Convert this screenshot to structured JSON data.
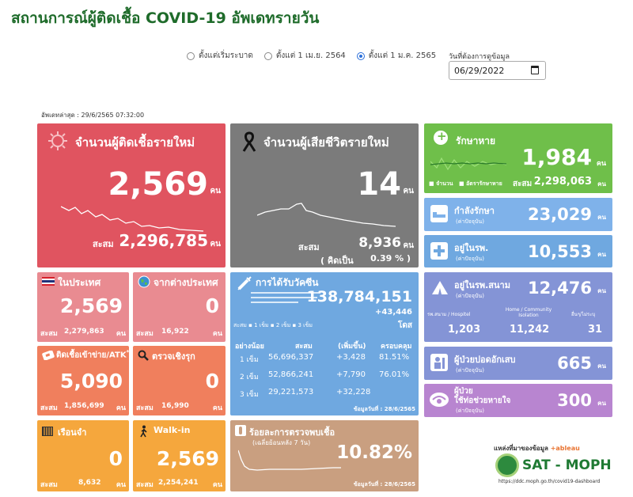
{
  "title": "สถานการณ์ผู้ติดเชื้อ COVID-19 อัพเดทรายวัน",
  "range_options": [
    {
      "label": "ตั้งแต่เริ่มระบาด",
      "selected": false
    },
    {
      "label": "ตั้งแต่ 1 เม.ย. 2564",
      "selected": false
    },
    {
      "label": "ตั้งแต่ 1 ม.ค. 2565",
      "selected": true
    }
  ],
  "date_picker": {
    "label": "วันที่ต้องการดูข้อมูล",
    "value": "06/29/2022"
  },
  "updated": "อัพเดทล่าสุด : 29/6/2565 07:32:00",
  "unit": "คน",
  "cumulative_label": "สะสม",
  "new_cases": {
    "label": "จำนวนผู้ติดเชื้อรายใหม่",
    "value": "2,569",
    "cumulative": "2,296,785"
  },
  "new_deaths": {
    "label": "จำนวนผู้เสียชีวิตรายใหม่",
    "value": "14",
    "cumulative": "8,936",
    "ratio_label": "( คิดเป็น",
    "ratio": "0.39 % )"
  },
  "recovered": {
    "label": "รักษาหาย",
    "value": "1,984",
    "cumulative": "2,298,063",
    "legend_count": "จำนวน",
    "legend_rate": "อัตรารักษาหาย"
  },
  "in_treatment": {
    "label": "กำลังรักษา",
    "sub": "(ค่าปัจจุบัน)",
    "value": "23,029"
  },
  "in_hospital": {
    "label": "อยู่ในรพ.",
    "sub": "(ค่าปัจจุบัน)",
    "value": "10,553"
  },
  "field_hospital": {
    "label": "อยู่ในรพ.สนาม",
    "sub": "(ค่าปัจจุบัน)",
    "value": "12,476",
    "cols": [
      {
        "name": "รพ.สนาม / Hospitel",
        "value": "1,203"
      },
      {
        "name": "Home / Community Isolation",
        "value": "11,242"
      },
      {
        "name": "อื่นๆ/ไม่ระบุ",
        "value": "31"
      }
    ]
  },
  "pneumonia": {
    "label": "ผู้ป่วยปอดอักเสบ",
    "sub": "(ค่าปัจจุบัน)",
    "value": "665"
  },
  "ventilator": {
    "label": "ผู้ป่วย",
    "label2": "ใช้ท่อช่วยหายใจ",
    "sub": "(ค่าปัจจุบัน)",
    "value": "300"
  },
  "domestic": {
    "label": "ในประเทศ",
    "value": "2,569",
    "cumulative": "2,279,863"
  },
  "imported": {
    "label": "จากต่างประเทศ",
    "value": "0",
    "cumulative": "16,922"
  },
  "atk": {
    "label": "ติดเชื้อเข้าข่าย/ATK",
    "star": "**",
    "value": "5,090",
    "cumulative": "1,856,699"
  },
  "proactive": {
    "label": "ตรวจเชิงรุก",
    "value": "0",
    "cumulative": "16,990"
  },
  "prison": {
    "label": "เรือนจำ",
    "value": "0",
    "cumulative": "8,632"
  },
  "walkin": {
    "label": "Walk-in",
    "value": "2,569",
    "cumulative": "2,254,241"
  },
  "vaccine": {
    "label": "การได้รับวัคซีน",
    "total": "138,784,151",
    "increase": "+43,446",
    "unit": "โดส",
    "legend": [
      "สะสม",
      "1 เข็ม",
      "2 เข็ม",
      "3 เข็ม"
    ],
    "headers": [
      "อย่างน้อย",
      "สะสม",
      "(เพิ่มขึ้น)",
      "ครอบคลุม"
    ],
    "rows": [
      {
        "dose": "1 เข็ม",
        "cum": "56,696,337",
        "inc": "+3,428",
        "cov": "81.51%"
      },
      {
        "dose": "2 เข็ม",
        "cum": "52,866,241",
        "inc": "+7,790",
        "cov": "76.01%"
      },
      {
        "dose": "3 เข็ม",
        "cum": "29,221,573",
        "inc": "+32,228",
        "cov": ""
      }
    ],
    "date": "ข้อมูลวันที่ : 28/6/2565"
  },
  "positivity": {
    "label": "ร้อยละการตรวจพบเชื้อ",
    "sub": "(เฉลี่ยย้อนหลัง 7 วัน)",
    "value": "10.82%",
    "date": "ข้อมูลวันที่ : 28/6/2565"
  },
  "source": {
    "label": "แหล่งที่มาของข้อมูล",
    "tableau": "+ableau",
    "brand": "SAT - MOPH",
    "url": "https://ddc.moph.go.th/covid19-dashboard"
  },
  "colors": {
    "cases": "#e05460",
    "deaths": "#7b7b7b",
    "recovered": "#6fbf4a",
    "treatment": "#7fb2ea",
    "field": "#8494d6",
    "pink": "#e98b91",
    "orange": "#f07f5d",
    "amber": "#f5a73d",
    "vaccine": "#6fa8e0",
    "positivity": "#c99f80",
    "ventilator": "#b885d0"
  }
}
